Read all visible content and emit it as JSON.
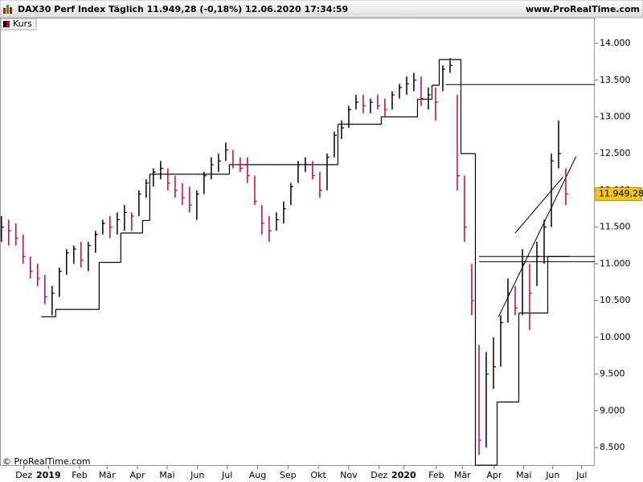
{
  "chart_data": {
    "type": "ohlc",
    "title": "DAX30 Perf Index Täglich 11.949,28 (-0,18%) 12.06.2020 17:34:59",
    "website": "www.ProRealTime.com",
    "copyright": "© ProRealTime.com",
    "legend": "Kurs",
    "up_color": "#000000",
    "down_color": "#c8003c",
    "x": [
      0,
      1,
      2,
      3,
      4,
      5,
      6,
      7,
      8,
      9,
      10,
      11,
      12,
      13,
      14,
      15,
      16,
      17,
      18,
      19,
      20,
      21,
      22,
      23,
      24,
      25,
      26,
      27,
      28,
      29,
      30,
      31,
      32,
      33,
      34,
      35,
      36,
      37,
      38,
      39,
      40,
      41,
      42,
      43,
      44,
      45,
      46,
      47,
      48,
      49,
      50,
      51,
      52,
      53,
      54,
      55,
      56,
      57,
      58,
      59,
      60,
      61,
      62,
      63,
      64,
      65,
      66,
      67,
      68,
      69,
      70,
      71,
      72,
      73,
      74,
      75,
      76,
      77,
      78
    ],
    "high": [
      11650,
      11600,
      11550,
      11400,
      11100,
      11000,
      10850,
      10700,
      10950,
      11200,
      11250,
      11300,
      11300,
      11450,
      11600,
      11650,
      11700,
      11800,
      11700,
      12000,
      12150,
      12300,
      12400,
      12300,
      12200,
      12100,
      12050,
      12000,
      12250,
      12450,
      12500,
      12650,
      12550,
      12450,
      12450,
      12200,
      11800,
      11650,
      11700,
      11850,
      12100,
      12400,
      12450,
      12400,
      12250,
      12500,
      12800,
      12950,
      13150,
      13300,
      13300,
      13250,
      13300,
      13250,
      13350,
      13450,
      13550,
      13600,
      13550,
      13400,
      13400,
      13700,
      13800,
      13300,
      12200,
      11000,
      9900,
      9800,
      10000,
      10300,
      10800,
      10700,
      11200,
      11000,
      11300,
      11600,
      12500,
      12950,
      12300
    ],
    "low": [
      11300,
      11250,
      11250,
      11000,
      10800,
      10700,
      10450,
      10300,
      10550,
      10850,
      11000,
      10950,
      10900,
      11150,
      11400,
      11350,
      11400,
      11450,
      11450,
      11650,
      11900,
      12050,
      12150,
      12000,
      11900,
      11800,
      11700,
      11600,
      11950,
      12150,
      12250,
      12400,
      12300,
      12250,
      12100,
      11800,
      11400,
      11300,
      11450,
      11550,
      11800,
      12100,
      12250,
      12150,
      11900,
      12000,
      12450,
      12700,
      12850,
      13100,
      13050,
      13050,
      13100,
      13000,
      13100,
      13250,
      13300,
      13350,
      13150,
      13100,
      12950,
      13350,
      13600,
      12000,
      11300,
      10300,
      8400,
      8500,
      9300,
      9600,
      10200,
      10300,
      10300,
      10100,
      10700,
      11000,
      11500,
      12300,
      11800
    ],
    "close": [
      11500,
      11450,
      11350,
      11100,
      10900,
      10800,
      10550,
      10600,
      10900,
      11150,
      11200,
      11050,
      11250,
      11400,
      11550,
      11500,
      11600,
      11700,
      11650,
      11950,
      12100,
      12250,
      12300,
      12100,
      12000,
      11900,
      11800,
      11950,
      12200,
      12350,
      12400,
      12550,
      12350,
      12300,
      12200,
      11850,
      11550,
      11450,
      11600,
      11750,
      12050,
      12350,
      12350,
      12200,
      12000,
      12450,
      12750,
      12850,
      13100,
      13200,
      13150,
      13200,
      13150,
      13100,
      13300,
      13400,
      13450,
      13500,
      13250,
      13300,
      13200,
      13650,
      13700,
      12200,
      11500,
      10500,
      8600,
      9500,
      9600,
      10200,
      10600,
      10400,
      11000,
      10600,
      11100,
      11500,
      12400,
      12500,
      11950
    ],
    "stop": {
      "color": "#000000",
      "values": [
        null,
        null,
        null,
        null,
        null,
        null,
        10280,
        10280,
        10380,
        10380,
        10380,
        10380,
        10380,
        10380,
        11020,
        11020,
        11020,
        11420,
        11420,
        11420,
        11590,
        12220,
        12220,
        12220,
        12220,
        12220,
        12220,
        12220,
        12220,
        12220,
        12220,
        12220,
        12350,
        12350,
        12350,
        12350,
        12350,
        12350,
        12350,
        12350,
        12350,
        12350,
        12350,
        12350,
        12350,
        12350,
        12350,
        12900,
        12900,
        12900,
        12900,
        12900,
        12900,
        13000,
        13000,
        13000,
        13000,
        13000,
        13240,
        13240,
        13430,
        13780,
        13780,
        13780,
        12500,
        12500,
        8260,
        8260,
        8260,
        9120,
        9120,
        9120,
        10330,
        10330,
        10330,
        10330,
        11100,
        11100,
        11100
      ]
    },
    "levels": [
      {
        "value": 13440,
        "from": 61.4
      },
      {
        "value": 11100,
        "from": 66
      },
      {
        "value": 11030,
        "from": 66
      }
    ],
    "trendlines": [
      {
        "x": [
          68.7,
          79.4
        ],
        "y": [
          10280,
          12460
        ]
      },
      {
        "x": [
          71,
          77.6
        ],
        "y": [
          11420,
          12180
        ]
      }
    ],
    "price_marker": {
      "value": 11949.28,
      "label": "11.949,28"
    },
    "xlim": [
      -0.2,
      82
    ],
    "ylim": [
      8250,
      14350
    ],
    "yticks": [
      {
        "value": 8500,
        "label": "8.500"
      },
      {
        "value": 9000,
        "label": "9.000"
      },
      {
        "value": 9500,
        "label": "9.500"
      },
      {
        "value": 10000,
        "label": "10.000"
      },
      {
        "value": 10500,
        "label": "10.500"
      },
      {
        "value": 11000,
        "label": "11.000"
      },
      {
        "value": 11500,
        "label": "11.500"
      },
      {
        "value": 12000,
        "label": "12.000"
      },
      {
        "value": 12500,
        "label": "12.500"
      },
      {
        "value": 13000,
        "label": "13.000"
      },
      {
        "value": 13500,
        "label": "13.500"
      },
      {
        "value": 14000,
        "label": "14.000"
      }
    ],
    "xticks": [
      {
        "value": 3.1,
        "label": "Dez"
      },
      {
        "value": 6.5,
        "label": "2019"
      },
      {
        "value": 10.8,
        "label": "Feb"
      },
      {
        "value": 14.6,
        "label": "Mär"
      },
      {
        "value": 18.8,
        "label": "Apr"
      },
      {
        "value": 22.9,
        "label": "Mai"
      },
      {
        "value": 27.1,
        "label": "Jun"
      },
      {
        "value": 31.2,
        "label": "Jul"
      },
      {
        "value": 35.4,
        "label": "Aug"
      },
      {
        "value": 39.6,
        "label": "Sep"
      },
      {
        "value": 43.8,
        "label": "Okt"
      },
      {
        "value": 48,
        "label": "Nov"
      },
      {
        "value": 52.2,
        "label": "Dez"
      },
      {
        "value": 55.6,
        "label": "2020"
      },
      {
        "value": 60.1,
        "label": "Feb"
      },
      {
        "value": 63.7,
        "label": "Mär"
      },
      {
        "value": 68.1,
        "label": "Apr"
      },
      {
        "value": 72.2,
        "label": "Mai"
      },
      {
        "value": 76.2,
        "label": "Jun"
      },
      {
        "value": 80.2,
        "label": "Jul"
      }
    ]
  }
}
